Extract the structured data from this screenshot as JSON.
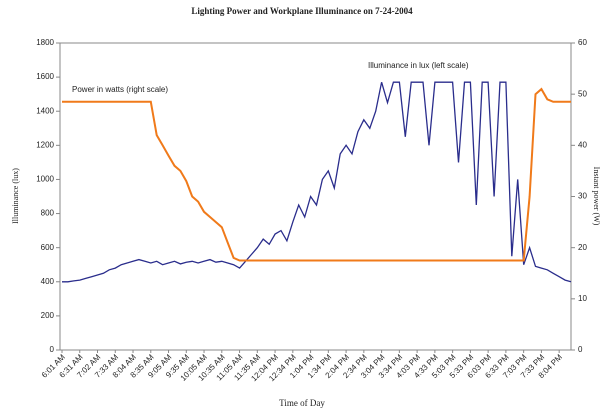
{
  "chart_data": {
    "type": "line",
    "title": "Lighting Power and Workplane Illuminance on 7-24-2004",
    "x_label": "Time of Day",
    "y_label": "Illuminance (lux)",
    "y2_label": "Instant power (W)",
    "annotations": [
      "Power in watts (right scale)",
      "Illuminance in lux (left scale)"
    ],
    "categories": [
      "6:01 AM",
      null,
      null,
      "6:31 AM",
      null,
      null,
      "7:02 AM",
      null,
      null,
      "7:33 AM",
      null,
      null,
      "8:04 AM",
      null,
      null,
      "8:35 AM",
      null,
      null,
      "9:05 AM",
      null,
      null,
      "9:35 AM",
      null,
      null,
      "10:05 AM",
      null,
      null,
      "10:35 AM",
      null,
      null,
      "11:05 AM",
      null,
      null,
      "11:35 AM",
      null,
      null,
      "12:04 PM",
      null,
      null,
      "12:34 PM",
      null,
      null,
      "1:04 PM",
      null,
      null,
      "1:34 PM",
      null,
      null,
      "2:04 PM",
      null,
      null,
      "2:34 PM",
      null,
      null,
      "3:04 PM",
      null,
      null,
      "3:34 PM",
      null,
      null,
      "4:03 PM",
      null,
      null,
      "4:33 PM",
      null,
      null,
      "5:03 PM",
      null,
      null,
      "5:33 PM",
      null,
      null,
      "6:03 PM",
      null,
      null,
      "6:33 PM",
      null,
      null,
      "7:03 PM",
      null,
      null,
      "7:33 PM",
      null,
      null,
      "8:04 PM",
      null,
      null
    ],
    "series": [
      {
        "name": "Illuminance in lux (left scale)",
        "color": "#2a2d8c",
        "axis": "y",
        "values": [
          400,
          400,
          405,
          410,
          420,
          430,
          440,
          450,
          470,
          480,
          500,
          510,
          520,
          530,
          520,
          510,
          520,
          500,
          510,
          520,
          505,
          515,
          520,
          510,
          520,
          530,
          515,
          520,
          510,
          500,
          480,
          520,
          560,
          600,
          650,
          620,
          680,
          700,
          640,
          750,
          850,
          780,
          900,
          850,
          1000,
          1050,
          950,
          1150,
          1200,
          1150,
          1280,
          1350,
          1300,
          1400,
          1570,
          1450,
          1570,
          1570,
          1250,
          1570,
          1570,
          1570,
          1200,
          1570,
          1570,
          1570,
          1570,
          1100,
          1570,
          1570,
          850,
          1570,
          1570,
          900,
          1570,
          1570,
          550,
          1000,
          500,
          600,
          490,
          480,
          470,
          450,
          430,
          410,
          400
        ]
      },
      {
        "name": "Power in watts (right scale)",
        "color": "#f07a1a",
        "axis": "y2",
        "values": [
          48.5,
          48.5,
          48.5,
          48.5,
          48.5,
          48.5,
          48.5,
          48.5,
          48.5,
          48.5,
          48.5,
          48.5,
          48.5,
          48.5,
          48.5,
          48.5,
          42,
          40,
          38,
          36,
          35,
          33,
          30,
          29,
          27,
          26,
          25,
          24,
          21,
          18,
          17.5,
          17.5,
          17.5,
          17.5,
          17.5,
          17.5,
          17.5,
          17.5,
          17.5,
          17.5,
          17.5,
          17.5,
          17.5,
          17.5,
          17.5,
          17.5,
          17.5,
          17.5,
          17.5,
          17.5,
          17.5,
          17.5,
          17.5,
          17.5,
          17.5,
          17.5,
          17.5,
          17.5,
          17.5,
          17.5,
          17.5,
          17.5,
          17.5,
          17.5,
          17.5,
          17.5,
          17.5,
          17.5,
          17.5,
          17.5,
          17.5,
          17.5,
          17.5,
          17.5,
          17.5,
          17.5,
          17.5,
          17.5,
          17.5,
          30,
          50,
          51,
          49,
          48.5,
          48.5,
          48.5,
          48.5
        ]
      }
    ],
    "ylim": [
      0,
      1800
    ],
    "yticks": [
      0,
      200,
      400,
      600,
      800,
      1000,
      1200,
      1400,
      1600,
      1800
    ],
    "y2lim": [
      0,
      60
    ],
    "y2ticks": [
      0,
      10,
      20,
      30,
      40,
      50,
      60
    ],
    "grid": false
  }
}
